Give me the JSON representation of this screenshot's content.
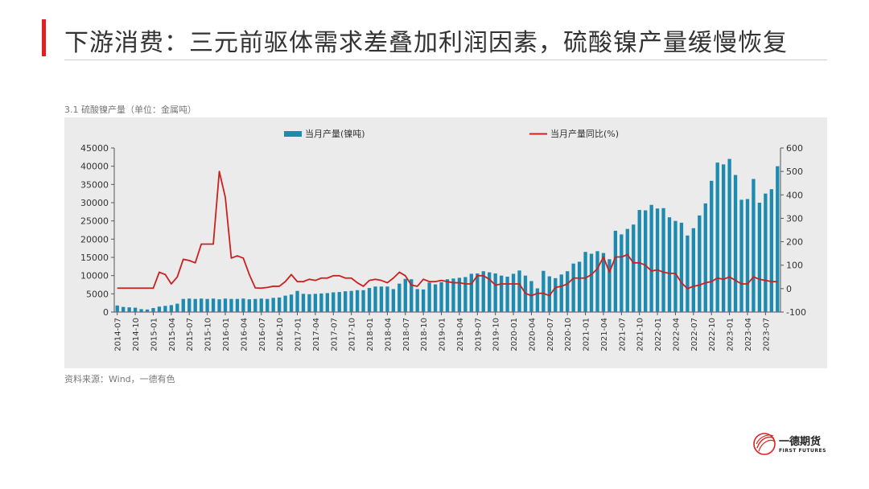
{
  "header": {
    "title": "下游消费：三元前驱体需求差叠加利润因素，硫酸镍产量缓慢恢复",
    "accent_color": "#e02020"
  },
  "figure": {
    "subtitle": "3.1 硫酸镍产量（单位：金属吨）",
    "source": "资料来源：Wind，一德有色"
  },
  "logo": {
    "name_cn": "一德期货",
    "name_en": "FIRST FUTURES"
  },
  "chart_data": {
    "type": "bar",
    "start_month": "2014-07",
    "tick_labels": [
      "2014-07",
      "2014-10",
      "2015-01",
      "2015-04",
      "2015-07",
      "2015-10",
      "2016-01",
      "2016-04",
      "2016-07",
      "2016-10",
      "2017-01",
      "2017-04",
      "2017-07",
      "2017-10",
      "2018-01",
      "2018-04",
      "2018-07",
      "2018-10",
      "2019-01",
      "2019-04",
      "2019-07",
      "2019-10",
      "2020-01",
      "2020-04",
      "2020-07",
      "2020-10",
      "2021-01",
      "2021-04",
      "2021-07",
      "2021-10",
      "2022-01",
      "2022-04",
      "2022-07",
      "2022-10",
      "2023-01",
      "2023-04",
      "2023-07"
    ],
    "ylim_left": [
      0,
      45000
    ],
    "yticks_left": [
      "0",
      "5000",
      "10000",
      "15000",
      "20000",
      "25000",
      "30000",
      "35000",
      "40000",
      "45000"
    ],
    "ylim_right": [
      -100,
      600
    ],
    "yticks_right": [
      "-100",
      "0",
      "100",
      "200",
      "300",
      "400",
      "500",
      "600"
    ],
    "legend_position": "top",
    "grid": false,
    "plot_background": "#ebebeb",
    "series": [
      {
        "name": "当月产量(镍吨)",
        "type": "bar",
        "axis": "left",
        "color": "#1d8bb0",
        "values": [
          1800,
          1400,
          1300,
          1200,
          800,
          700,
          1100,
          1500,
          1700,
          1900,
          2300,
          3600,
          3700,
          3600,
          3700,
          3600,
          3700,
          3500,
          3700,
          3600,
          3600,
          3700,
          3500,
          3600,
          3700,
          3600,
          3900,
          4000,
          4500,
          4800,
          5800,
          5000,
          4900,
          5000,
          5100,
          5200,
          5400,
          5500,
          5700,
          5800,
          6000,
          6000,
          6600,
          7000,
          7000,
          7000,
          6300,
          7800,
          9100,
          9000,
          6300,
          6200,
          8100,
          7600,
          8200,
          9000,
          9200,
          9400,
          9600,
          10500,
          10600,
          11200,
          10900,
          10600,
          10000,
          9700,
          10500,
          11400,
          10000,
          8500,
          6500,
          11300,
          9800,
          9300,
          10300,
          11200,
          13300,
          13800,
          16500,
          16000,
          16700,
          16200,
          14500,
          22300,
          21300,
          22800,
          24000,
          28000,
          27900,
          29400,
          28400,
          28500,
          26000,
          25000,
          24500,
          21000,
          23000,
          26500,
          29800,
          36000,
          41000,
          40500,
          42000,
          37600,
          30800,
          31000,
          36500,
          30000,
          32500,
          33700,
          40000
        ]
      },
      {
        "name": "当月产量同比(%)",
        "type": "line",
        "axis": "right",
        "color": "#cc2020",
        "values": [
          2,
          2,
          2,
          2,
          2,
          2,
          2,
          70,
          60,
          20,
          50,
          125,
          120,
          110,
          190,
          190,
          190,
          500,
          390,
          130,
          140,
          130,
          60,
          3,
          2,
          5,
          10,
          10,
          30,
          60,
          30,
          30,
          40,
          35,
          45,
          45,
          55,
          55,
          45,
          45,
          25,
          10,
          35,
          40,
          35,
          25,
          45,
          70,
          55,
          15,
          10,
          40,
          30,
          30,
          35,
          30,
          25,
          25,
          20,
          20,
          55,
          55,
          40,
          15,
          20,
          20,
          20,
          20,
          -20,
          -30,
          -20,
          -20,
          -30,
          5,
          10,
          20,
          45,
          45,
          45,
          60,
          85,
          135,
          70,
          135,
          135,
          145,
          110,
          110,
          100,
          75,
          80,
          70,
          65,
          65,
          25,
          0,
          10,
          15,
          25,
          30,
          45,
          40,
          50,
          35,
          20,
          20,
          50,
          40,
          35,
          30,
          30
        ]
      }
    ]
  }
}
